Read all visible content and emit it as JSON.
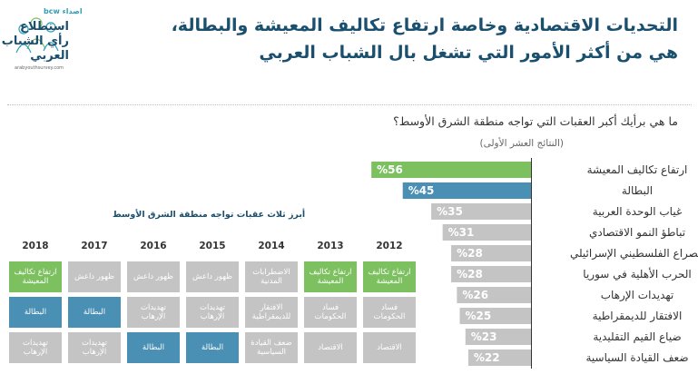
{
  "logo": {
    "brand": "اصداء bcw",
    "line1": "استطلاع",
    "line2": "رأي الشباب",
    "line3": "العربي",
    "url": "arabyouthsurvey.com"
  },
  "header": {
    "title_line1": "التحديات الاقتصادية وخاصة ارتفاع تكاليف المعيشة والبطالة،",
    "title_line2": "هي من أكثر الأمور التي تشغل بال الشباب العربي"
  },
  "question": "ما هي برأيك أكبر العقبات التي تواجه منطقة الشرق الأوسط؟",
  "subquestion": "(النتائج العشر الأولى)",
  "colors": {
    "navy": "#1a4f6e",
    "green": "#7cc05f",
    "blue": "#4a8fb4",
    "gray": "#c4c4c4"
  },
  "chart_data": [
    {
      "type": "bar",
      "orientation": "horizontal",
      "categories": [
        "ارتفاع تكاليف المعيشة",
        "البطالة",
        "غياب الوحدة العربية",
        "تباطؤ النمو الاقتصادي",
        "الصراع الفلسطيني الإسرائيلي",
        "الحرب الأهلية في سوريا",
        "تهديدات الإرهاب",
        "الافتقار للديمقراطية",
        "ضياع القيم التقليدية",
        "ضعف القيادة السياسية"
      ],
      "values": [
        56,
        45,
        35,
        31,
        28,
        28,
        26,
        25,
        23,
        22
      ],
      "value_labels": [
        "%56",
        "%45",
        "%35",
        "%31",
        "%28",
        "%28",
        "%26",
        "%25",
        "%23",
        "%22"
      ],
      "bar_colors": [
        "#7cc05f",
        "#4a8fb4",
        "#c4c4c4",
        "#c4c4c4",
        "#c4c4c4",
        "#c4c4c4",
        "#c4c4c4",
        "#c4c4c4",
        "#c4c4c4",
        "#c4c4c4"
      ],
      "xlim": [
        0,
        100
      ]
    },
    {
      "type": "table",
      "title": "أبرز ثلاث عقبات تواجه منطقة الشرق الأوسط",
      "years": [
        "2012",
        "2013",
        "2014",
        "2015",
        "2016",
        "2017",
        "2018"
      ],
      "rows": [
        [
          {
            "text": "ارتفاع تكاليف المعيشة",
            "color": "green"
          },
          {
            "text": "ارتفاع تكاليف المعيشة",
            "color": "green"
          },
          {
            "text": "الاضطرابات المدنية",
            "color": "gray"
          },
          {
            "text": "ظهور داعش",
            "color": "gray"
          },
          {
            "text": "ظهور داعش",
            "color": "gray"
          },
          {
            "text": "ظهور داعش",
            "color": "gray"
          },
          {
            "text": "ارتفاع تكاليف المعيشة",
            "color": "green"
          }
        ],
        [
          {
            "text": "فساد الحكومات",
            "color": "gray"
          },
          {
            "text": "فساد الحكومات",
            "color": "gray"
          },
          {
            "text": "الافتقار للديمقراطية",
            "color": "gray"
          },
          {
            "text": "تهديدات الإرهاب",
            "color": "gray"
          },
          {
            "text": "تهديدات الإرهاب",
            "color": "gray"
          },
          {
            "text": "البطالة",
            "color": "blue"
          },
          {
            "text": "البطالة",
            "color": "blue"
          }
        ],
        [
          {
            "text": "الاقتصاد",
            "color": "gray"
          },
          {
            "text": "الاقتصاد",
            "color": "gray"
          },
          {
            "text": "ضعف القيادة السياسية",
            "color": "gray"
          },
          {
            "text": "البطالة",
            "color": "blue"
          },
          {
            "text": "البطالة",
            "color": "blue"
          },
          {
            "text": "تهديدات الإرهاب",
            "color": "gray"
          },
          {
            "text": "تهديدات الإرهاب",
            "color": "gray"
          }
        ]
      ]
    }
  ]
}
